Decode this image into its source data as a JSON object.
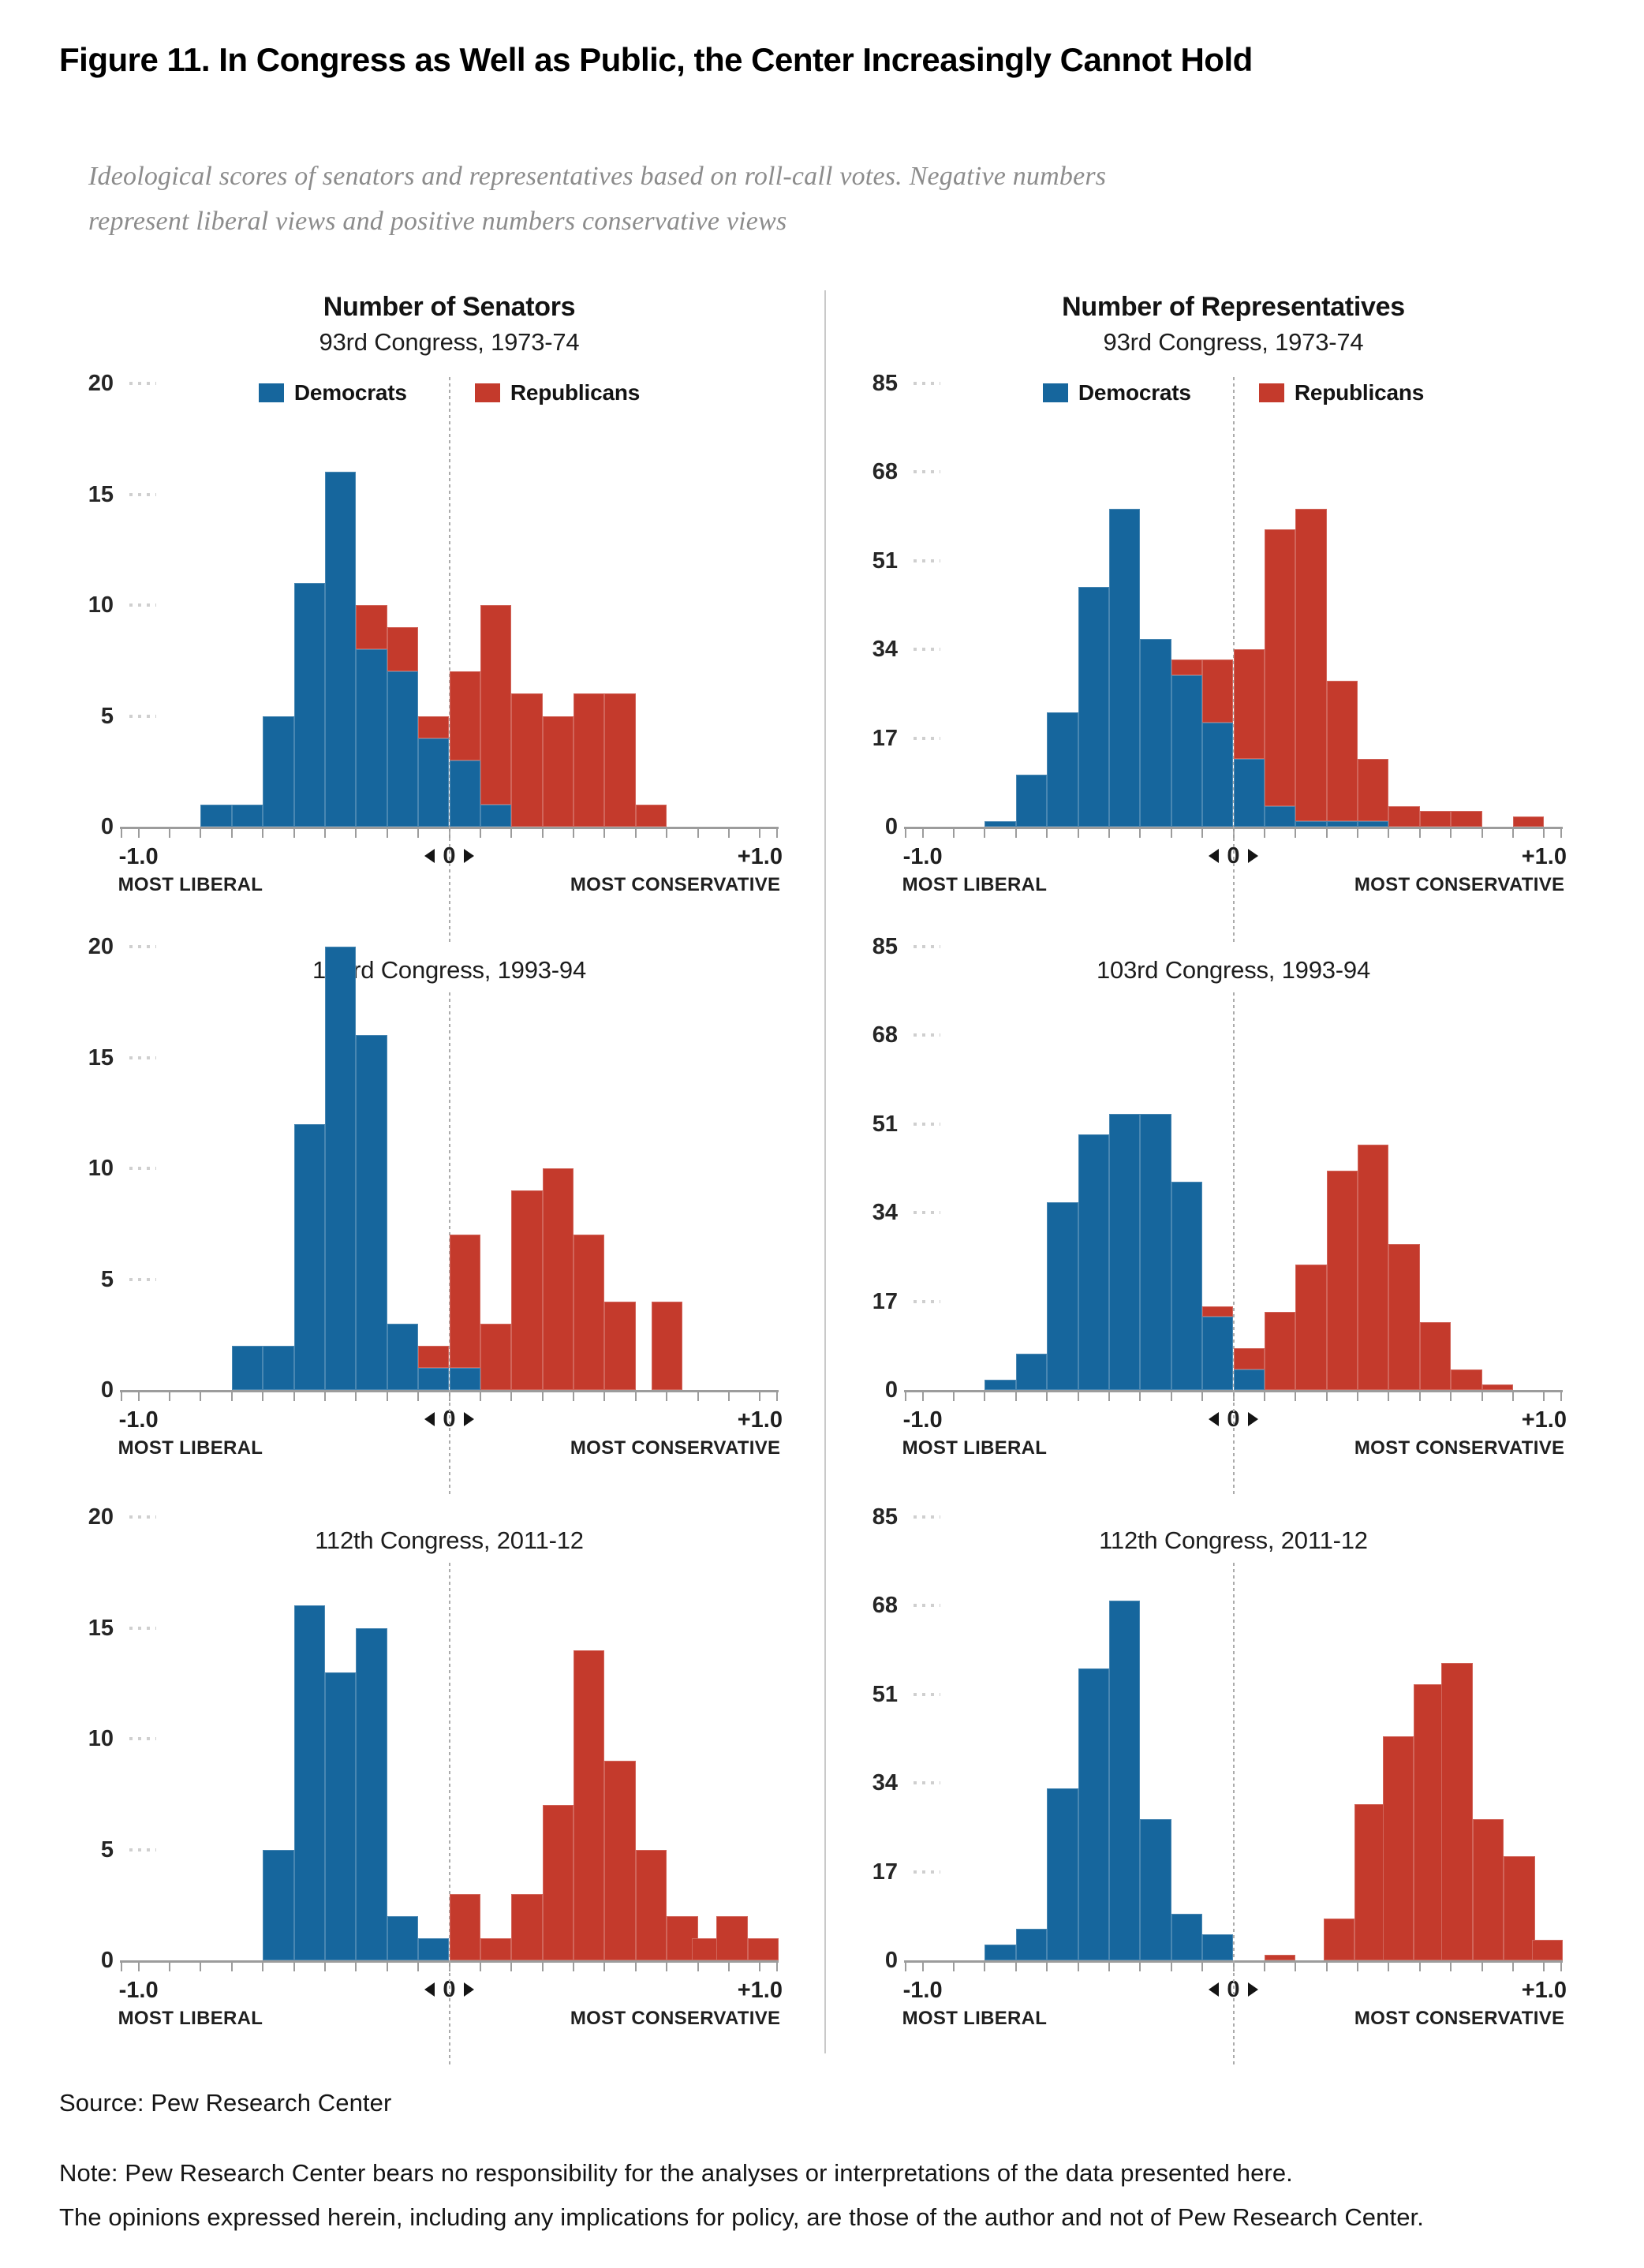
{
  "page": {
    "title": "Figure 11. In Congress as Well as Public, the Center Increasingly Cannot Hold",
    "subtitle": [
      "Ideological scores of senators and representatives based on roll-call votes. Negative numbers",
      "represent liberal views and positive numbers conservative views"
    ],
    "source": "Source: Pew Research Center",
    "note": [
      "Note: Pew Research Center bears no responsibility for the analyses or interpretations of the data presented here.",
      "The opinions expressed herein, including any implications for policy, are those of the author and not of Pew Research Center."
    ]
  },
  "chart_data": {
    "type": "bar",
    "subtype": "stacked-histogram-grid",
    "legend": [
      "Democrats",
      "Republicans"
    ],
    "colors": {
      "democrats": "#16669D",
      "republicans": "#C43A2C"
    },
    "x_axis": {
      "min_label": "-1.0",
      "zero_label": "0",
      "max_label": "+1.0",
      "left_caption": "MOST LIBERAL",
      "right_caption": "MOST CONSERVATIVE",
      "range": [
        -1.0,
        1.0
      ],
      "bin_width": 0.1,
      "grid": "off"
    },
    "bars_format": "[bin_left_edge_ideology_score, democrats_count, republicans_count]",
    "charts": [
      {
        "id": "senators-93",
        "header": "Number of Senators",
        "title": "93rd Congress, 1973-74",
        "y_unit": "senators",
        "y_max": 20,
        "y_ticks": [
          0,
          5,
          10,
          15,
          20
        ],
        "bars": [
          [
            -0.8,
            1,
            0
          ],
          [
            -0.7,
            1,
            0
          ],
          [
            -0.6,
            5,
            0
          ],
          [
            -0.5,
            11,
            0
          ],
          [
            -0.4,
            16,
            0
          ],
          [
            -0.3,
            8,
            2
          ],
          [
            -0.2,
            7,
            2
          ],
          [
            -0.1,
            4,
            1
          ],
          [
            0,
            3,
            4
          ],
          [
            0.1,
            1,
            9
          ],
          [
            0.2,
            0,
            6
          ],
          [
            0.3,
            0,
            5
          ],
          [
            0.4,
            0,
            6
          ],
          [
            0.5,
            0,
            6
          ],
          [
            0.6,
            0,
            1
          ]
        ]
      },
      {
        "id": "representatives-93",
        "header": "Number of Representatives",
        "title": "93rd Congress, 1973-74",
        "y_unit": "representatives",
        "y_max": 85,
        "y_ticks": [
          0,
          17,
          34,
          51,
          68,
          85
        ],
        "bars": [
          [
            -0.8,
            1,
            0
          ],
          [
            -0.7,
            10,
            0
          ],
          [
            -0.6,
            22,
            0
          ],
          [
            -0.5,
            46,
            0
          ],
          [
            -0.4,
            61,
            0
          ],
          [
            -0.3,
            36,
            0
          ],
          [
            -0.2,
            29,
            3
          ],
          [
            -0.1,
            20,
            12
          ],
          [
            0,
            13,
            21
          ],
          [
            0.1,
            4,
            53
          ],
          [
            0.2,
            1,
            60
          ],
          [
            0.3,
            1,
            27
          ],
          [
            0.4,
            1,
            12
          ],
          [
            0.5,
            0,
            4
          ],
          [
            0.6,
            0,
            3
          ],
          [
            0.7,
            0,
            3
          ],
          [
            0.9,
            0,
            2
          ]
        ]
      },
      {
        "id": "senators-103",
        "header": null,
        "title": "103rd Congress, 1993-94",
        "y_unit": "senators",
        "y_max": 20,
        "y_ticks": [
          0,
          5,
          10,
          15,
          20
        ],
        "bars": [
          [
            -0.7,
            2,
            0
          ],
          [
            -0.6,
            2,
            0
          ],
          [
            -0.5,
            12,
            0
          ],
          [
            -0.4,
            20,
            0
          ],
          [
            -0.3,
            16,
            0
          ],
          [
            -0.2,
            3,
            0
          ],
          [
            -0.1,
            1,
            1
          ],
          [
            0,
            1,
            6
          ],
          [
            0.1,
            0,
            3
          ],
          [
            0.2,
            0,
            9
          ],
          [
            0.3,
            0,
            10
          ],
          [
            0.4,
            0,
            7
          ],
          [
            0.5,
            0,
            4
          ],
          [
            0.65,
            0,
            4
          ]
        ]
      },
      {
        "id": "representatives-103",
        "header": null,
        "title": "103rd Congress, 1993-94",
        "y_unit": "representatives",
        "y_max": 85,
        "y_ticks": [
          0,
          17,
          34,
          51,
          68,
          85
        ],
        "bars": [
          [
            -0.8,
            2,
            0
          ],
          [
            -0.7,
            7,
            0
          ],
          [
            -0.6,
            36,
            0
          ],
          [
            -0.5,
            49,
            0
          ],
          [
            -0.4,
            53,
            0
          ],
          [
            -0.3,
            53,
            0
          ],
          [
            -0.2,
            40,
            0
          ],
          [
            -0.1,
            14,
            2
          ],
          [
            0,
            4,
            4
          ],
          [
            0.1,
            0,
            15
          ],
          [
            0.2,
            0,
            24
          ],
          [
            0.3,
            0,
            42
          ],
          [
            0.4,
            0,
            47
          ],
          [
            0.5,
            0,
            28
          ],
          [
            0.6,
            0,
            13
          ],
          [
            0.7,
            0,
            4
          ],
          [
            0.8,
            0,
            1
          ]
        ]
      },
      {
        "id": "senators-112",
        "header": null,
        "title": "112th Congress, 2011-12",
        "y_unit": "senators",
        "y_max": 20,
        "y_ticks": [
          0,
          5,
          10,
          15,
          20
        ],
        "bars": [
          [
            -0.6,
            5,
            0
          ],
          [
            -0.5,
            16,
            0
          ],
          [
            -0.4,
            13,
            0
          ],
          [
            -0.3,
            15,
            0
          ],
          [
            -0.2,
            2,
            0
          ],
          [
            -0.1,
            1,
            0
          ],
          [
            0,
            0,
            3
          ],
          [
            0.1,
            0,
            1
          ],
          [
            0.2,
            0,
            3
          ],
          [
            0.3,
            0,
            7
          ],
          [
            0.4,
            0,
            14
          ],
          [
            0.5,
            0,
            9
          ],
          [
            0.6,
            0,
            5
          ],
          [
            0.7,
            0,
            2
          ],
          [
            0.78,
            0,
            1
          ],
          [
            0.86,
            0,
            2
          ],
          [
            0.96,
            0,
            1
          ]
        ]
      },
      {
        "id": "representatives-112",
        "header": null,
        "title": "112th Congress, 2011-12",
        "y_unit": "representatives",
        "y_max": 85,
        "y_ticks": [
          0,
          17,
          34,
          51,
          68,
          85
        ],
        "bars": [
          [
            -0.8,
            3,
            0
          ],
          [
            -0.7,
            6,
            0
          ],
          [
            -0.6,
            33,
            0
          ],
          [
            -0.5,
            56,
            0
          ],
          [
            -0.4,
            69,
            0
          ],
          [
            -0.3,
            27,
            0
          ],
          [
            -0.2,
            9,
            0
          ],
          [
            -0.1,
            5,
            0
          ],
          [
            0.1,
            0,
            1
          ],
          [
            0.29,
            0,
            8
          ],
          [
            0.39,
            0,
            30
          ],
          [
            0.48,
            0,
            43
          ],
          [
            0.58,
            0,
            53
          ],
          [
            0.67,
            0,
            57
          ],
          [
            0.77,
            0,
            27
          ],
          [
            0.87,
            0,
            20
          ],
          [
            0.96,
            0,
            4
          ]
        ]
      }
    ]
  }
}
